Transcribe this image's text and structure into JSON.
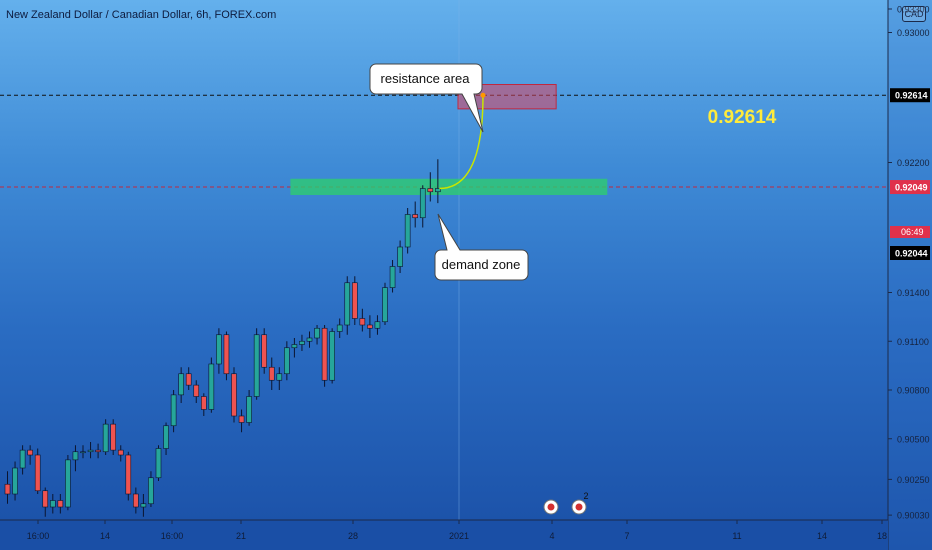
{
  "title": "New Zealand Dollar / Canadian Dollar, 6h, FOREX.com",
  "unit_badge": "CAD",
  "annotations": {
    "resistance_label": "resistance area",
    "demand_label": "demand zone",
    "target_label": "0.92614"
  },
  "countdown": "06:49",
  "event_icon_badge": "2",
  "colors": {
    "up": "#26a69a",
    "down": "#ef5350",
    "resistance_fill": "#e0465f",
    "demand_fill": "#2ecc71",
    "target_text": "#ffeb3b",
    "curve": "#c8e600"
  },
  "chart_data": {
    "type": "candlestick",
    "title": "New Zealand Dollar / Canadian Dollar, 6h, FOREX.com",
    "ylim": [
      0.9,
      0.932
    ],
    "y_ticks": [
      "0.93300",
      "0.93000",
      "0.92614",
      "0.92200",
      "0.92049",
      "0.92044",
      "0.91400",
      "0.91100",
      "0.90800",
      "0.90500",
      "0.90250",
      "0.90030"
    ],
    "x_ticks": [
      "16:00",
      "14",
      "16:00",
      "21",
      "28",
      "2021",
      "4",
      "7",
      "11",
      "14",
      "18"
    ],
    "price_lines": [
      {
        "label": "0.92614",
        "value": 0.92614,
        "style": "dashed",
        "label_color": "#ffffff",
        "label_bg": "#000000"
      },
      {
        "label": "0.92049",
        "value": 0.92049,
        "style": "dashed",
        "label_color": "#ffffff",
        "label_bg": "#e0314b"
      },
      {
        "label": "0.92044",
        "value": 0.92044,
        "style": "none",
        "label_color": "#ffffff",
        "label_bg": "#000000"
      }
    ],
    "resistance_zone": {
      "x_from": 60,
      "x_to": 73,
      "y_low": 0.9253,
      "y_high": 0.9268
    },
    "demand_zone": {
      "x_from": 28,
      "x_to": 66,
      "y_low": 0.92,
      "y_high": 0.921
    },
    "ohlc": [
      [
        0.9022,
        0.903,
        0.901,
        0.9016
      ],
      [
        0.9016,
        0.9036,
        0.9012,
        0.9032
      ],
      [
        0.9032,
        0.9046,
        0.9028,
        0.9043
      ],
      [
        0.9043,
        0.9046,
        0.9034,
        0.904
      ],
      [
        0.904,
        0.9044,
        0.9016,
        0.9018
      ],
      [
        0.9018,
        0.902,
        0.9002,
        0.9008
      ],
      [
        0.9008,
        0.9016,
        0.9004,
        0.9012
      ],
      [
        0.9012,
        0.9016,
        0.9004,
        0.9008
      ],
      [
        0.9008,
        0.904,
        0.9006,
        0.9037
      ],
      [
        0.9037,
        0.9046,
        0.903,
        0.9042
      ],
      [
        0.9042,
        0.9046,
        0.9038,
        0.9042
      ],
      [
        0.9042,
        0.9048,
        0.9038,
        0.9043
      ],
      [
        0.9043,
        0.9047,
        0.9038,
        0.9042
      ],
      [
        0.9042,
        0.9062,
        0.904,
        0.9059
      ],
      [
        0.9059,
        0.9062,
        0.904,
        0.9043
      ],
      [
        0.9043,
        0.9046,
        0.9036,
        0.904
      ],
      [
        0.904,
        0.9042,
        0.9012,
        0.9016
      ],
      [
        0.9016,
        0.902,
        0.9004,
        0.9008
      ],
      [
        0.9008,
        0.9016,
        0.9002,
        0.901
      ],
      [
        0.901,
        0.903,
        0.9008,
        0.9026
      ],
      [
        0.9026,
        0.9046,
        0.9024,
        0.9044
      ],
      [
        0.9044,
        0.906,
        0.904,
        0.9058
      ],
      [
        0.9058,
        0.908,
        0.9054,
        0.9077
      ],
      [
        0.9077,
        0.9094,
        0.9072,
        0.909
      ],
      [
        0.909,
        0.9094,
        0.908,
        0.9083
      ],
      [
        0.9083,
        0.9086,
        0.9072,
        0.9076
      ],
      [
        0.9076,
        0.9078,
        0.9064,
        0.9068
      ],
      [
        0.9068,
        0.91,
        0.9066,
        0.9096
      ],
      [
        0.9096,
        0.9118,
        0.909,
        0.9114
      ],
      [
        0.9114,
        0.9116,
        0.9086,
        0.909
      ],
      [
        0.909,
        0.9094,
        0.906,
        0.9064
      ],
      [
        0.9064,
        0.9068,
        0.9054,
        0.906
      ],
      [
        0.906,
        0.908,
        0.9058,
        0.9076
      ],
      [
        0.9076,
        0.9118,
        0.9074,
        0.9114
      ],
      [
        0.9114,
        0.9118,
        0.909,
        0.9094
      ],
      [
        0.9094,
        0.91,
        0.908,
        0.9086
      ],
      [
        0.9086,
        0.9094,
        0.908,
        0.909
      ],
      [
        0.909,
        0.911,
        0.9086,
        0.9106
      ],
      [
        0.9106,
        0.9112,
        0.91,
        0.9108
      ],
      [
        0.9108,
        0.9114,
        0.9104,
        0.911
      ],
      [
        0.911,
        0.9116,
        0.9106,
        0.9112
      ],
      [
        0.9112,
        0.912,
        0.9108,
        0.9118
      ],
      [
        0.9118,
        0.912,
        0.9082,
        0.9086
      ],
      [
        0.9086,
        0.9118,
        0.9084,
        0.9116
      ],
      [
        0.9116,
        0.9124,
        0.9112,
        0.912
      ],
      [
        0.912,
        0.915,
        0.9114,
        0.9146
      ],
      [
        0.9146,
        0.915,
        0.912,
        0.9124
      ],
      [
        0.9124,
        0.913,
        0.9116,
        0.912
      ],
      [
        0.912,
        0.9126,
        0.9112,
        0.9118
      ],
      [
        0.9118,
        0.9126,
        0.9114,
        0.9122
      ],
      [
        0.9122,
        0.9146,
        0.912,
        0.9143
      ],
      [
        0.9143,
        0.916,
        0.914,
        0.9156
      ],
      [
        0.9156,
        0.9172,
        0.9152,
        0.9168
      ],
      [
        0.9168,
        0.9192,
        0.9164,
        0.9188
      ],
      [
        0.9188,
        0.9196,
        0.918,
        0.9186
      ],
      [
        0.9186,
        0.9206,
        0.918,
        0.9204
      ],
      [
        0.9204,
        0.9214,
        0.9196,
        0.9202
      ],
      [
        0.9202,
        0.9222,
        0.9195,
        0.9204
      ]
    ]
  }
}
